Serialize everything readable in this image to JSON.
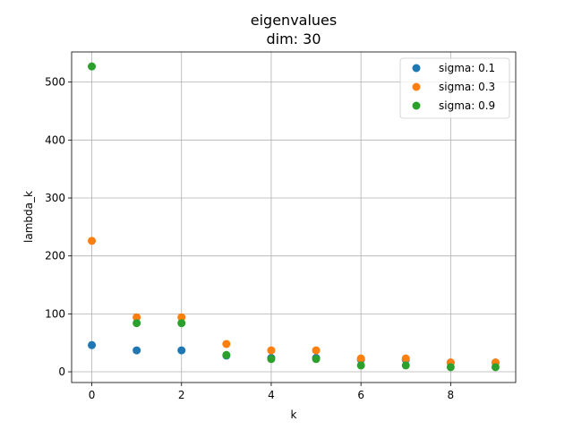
{
  "chart_data": {
    "type": "scatter",
    "title": "eigenvalues",
    "subtitle": "dim: 30",
    "xlabel": "k",
    "ylabel": "lambda_k",
    "xlim": [
      -0.45,
      9.45
    ],
    "ylim": [
      -18.5,
      552
    ],
    "xticks": [
      0,
      2,
      4,
      6,
      8
    ],
    "yticks": [
      0,
      100,
      200,
      300,
      400,
      500
    ],
    "grid": true,
    "legend_position": "top-right",
    "series": [
      {
        "name": "sigma: 0.1",
        "color": "#1f77b4",
        "x": [
          0,
          1,
          2,
          3,
          4,
          5,
          6,
          7,
          8,
          9
        ],
        "y": [
          46,
          37,
          37,
          28,
          24,
          24,
          21,
          21,
          16,
          16
        ]
      },
      {
        "name": "sigma: 0.3",
        "color": "#ff7f0e",
        "x": [
          0,
          1,
          2,
          3,
          4,
          5,
          6,
          7,
          8,
          9
        ],
        "y": [
          226,
          94,
          94,
          48,
          37,
          37,
          23,
          23,
          16,
          16
        ]
      },
      {
        "name": "sigma: 0.9",
        "color": "#2ca02c",
        "x": [
          0,
          1,
          2,
          3,
          4,
          5,
          6,
          7,
          8,
          9
        ],
        "y": [
          527,
          84,
          84,
          29,
          22,
          22,
          11,
          11,
          8,
          8
        ]
      }
    ]
  }
}
